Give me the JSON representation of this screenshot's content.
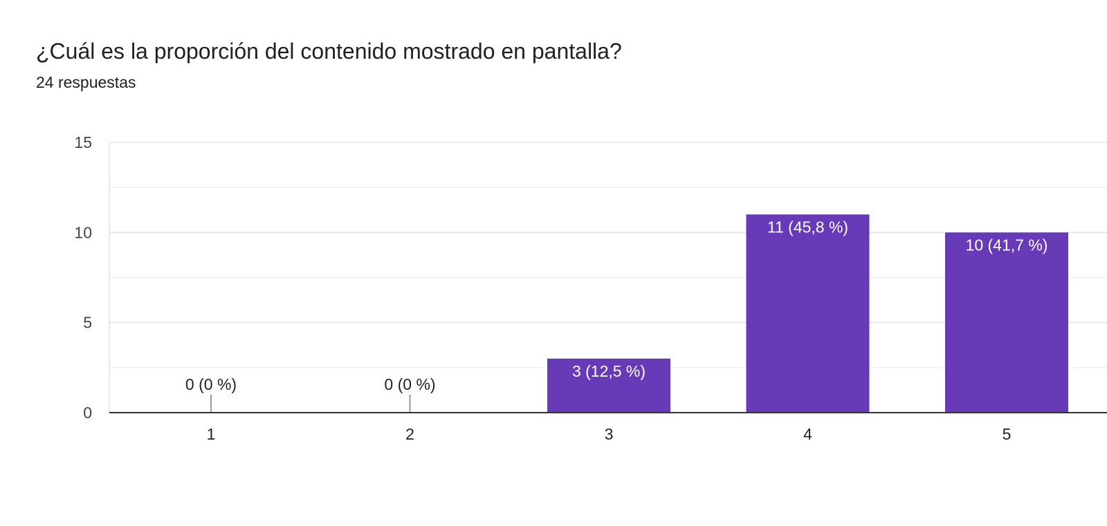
{
  "header": {
    "title": "¿Cuál es la proporción del contenido mostrado en pantalla?",
    "responses": "24 respuestas"
  },
  "chart_data": {
    "type": "bar",
    "categories": [
      "1",
      "2",
      "3",
      "4",
      "5"
    ],
    "values": [
      0,
      0,
      3,
      11,
      10
    ],
    "data_labels": [
      "0 (0 %)",
      "0 (0 %)",
      "3 (12,5 %)",
      "11 (45,8 %)",
      "10 (41,7 %)"
    ],
    "yticks": [
      0,
      5,
      10,
      15
    ],
    "ylim": [
      0,
      15
    ],
    "grid": true,
    "colors": {
      "bar": "#673ab7",
      "grid_major": "#e8e8e8",
      "grid_minor": "#f3f3f3",
      "axis": "#333333",
      "zero_marker": "#999999",
      "label_inside": "#ffffff",
      "label_outside": "#222222"
    }
  }
}
